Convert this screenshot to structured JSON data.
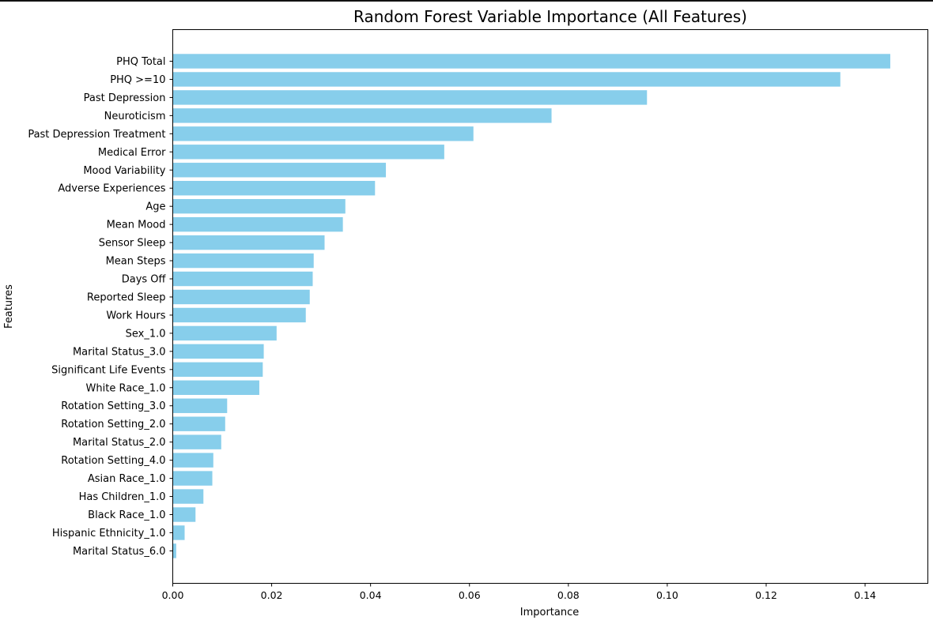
{
  "chart_data": {
    "type": "bar",
    "orientation": "horizontal",
    "title": "Random Forest Variable Importance (All Features)",
    "xlabel": "Importance",
    "ylabel": "Features",
    "xlim": [
      0,
      0.1527
    ],
    "xticks": [
      0.0,
      0.02,
      0.04,
      0.06,
      0.08,
      0.1,
      0.12,
      0.14
    ],
    "xtick_labels": [
      "0.00",
      "0.02",
      "0.04",
      "0.06",
      "0.08",
      "0.10",
      "0.12",
      "0.14"
    ],
    "grid": false,
    "bar_color": "#87CEEB",
    "categories": [
      "PHQ Total",
      "PHQ >=10",
      "Past Depression",
      "Neuroticism",
      "Past Depression Treatment",
      "Medical Error",
      "Mood Variability",
      "Adverse Experiences",
      "Age",
      "Mean Mood",
      "Sensor Sleep",
      "Mean Steps",
      "Days Off",
      "Reported Sleep",
      "Work Hours",
      "Sex_1.0",
      "Marital Status_3.0",
      "Significant Life Events",
      "White Race_1.0",
      "Rotation Setting_3.0",
      "Rotation Setting_2.0",
      "Marital Status_2.0",
      "Rotation Setting_4.0",
      "Asian Race_1.0",
      "Has Children_1.0",
      "Black Race_1.0",
      "Hispanic Ethnicity_1.0",
      "Marital Status_6.0"
    ],
    "values": [
      0.1451,
      0.135,
      0.0959,
      0.0766,
      0.0608,
      0.0549,
      0.0431,
      0.0409,
      0.0349,
      0.0344,
      0.0307,
      0.0285,
      0.0283,
      0.0277,
      0.0269,
      0.021,
      0.0184,
      0.0182,
      0.0175,
      0.011,
      0.0106,
      0.0098,
      0.0082,
      0.008,
      0.0062,
      0.0046,
      0.0024,
      0.0007
    ]
  }
}
